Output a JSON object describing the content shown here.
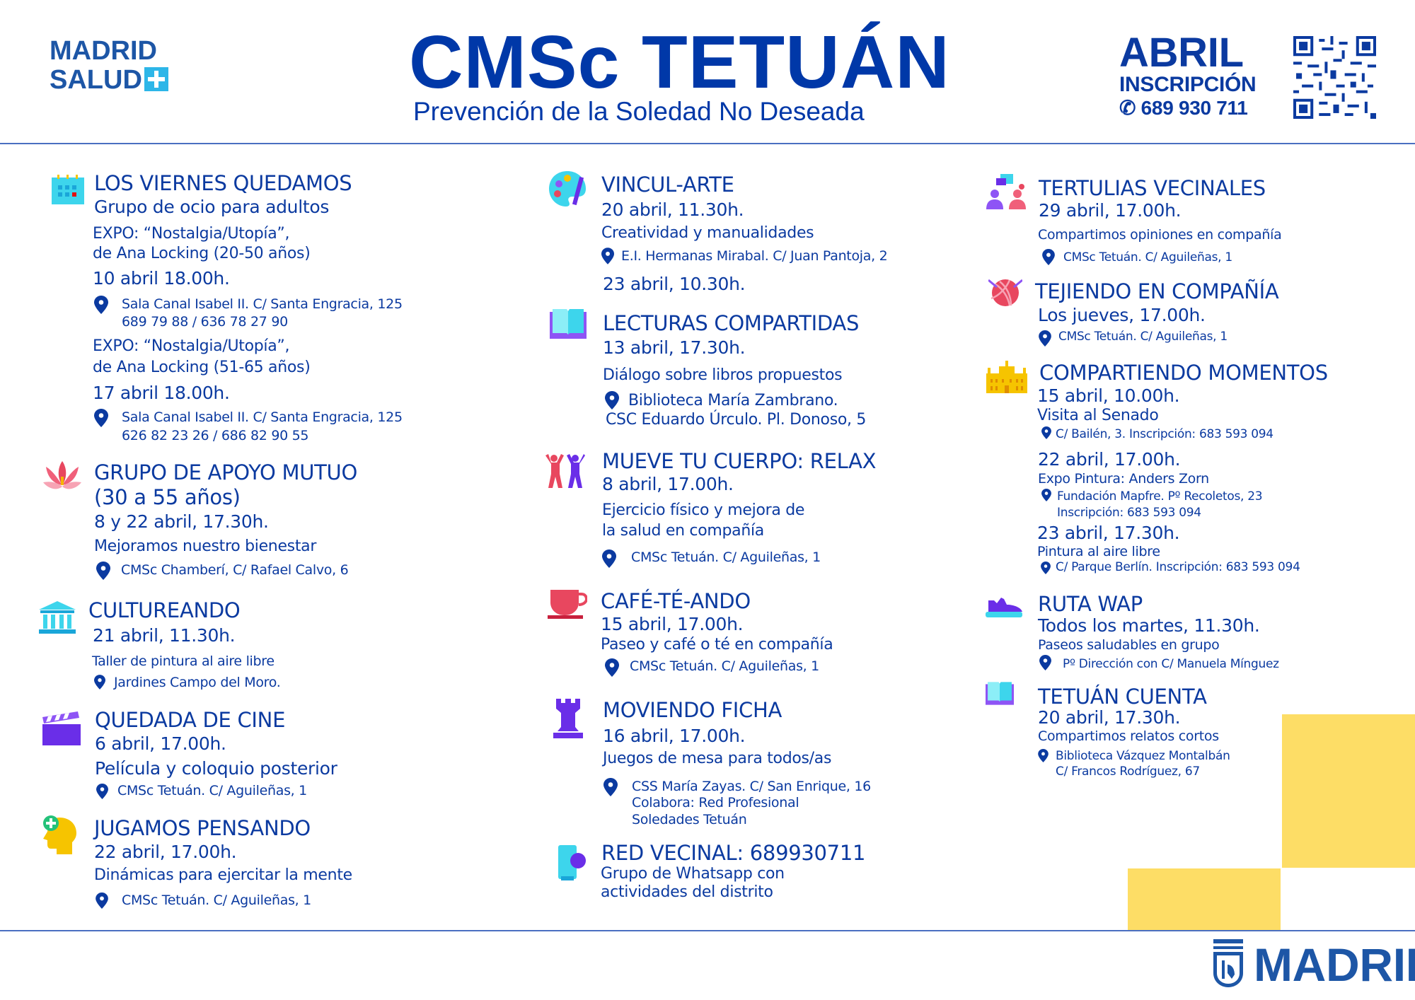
{
  "header": {
    "logo_left": {
      "line1": "MADRID",
      "line2": "SALUD"
    },
    "title": "CMSc TETUÁN",
    "subtitle": "Prevención de la Soledad No Deseada",
    "month": "ABRIL",
    "inscription_label": "INSCRIPCIÓN",
    "phone": "689 930 711"
  },
  "colors": {
    "text": "#0b3aa0",
    "title": "#0038a8",
    "accent_yellow": "#fddd66",
    "rule": "#4a6fc1"
  },
  "col1": [
    {
      "icon": "calendar-icon",
      "title": "LOS VIERNES QUEDAMOS",
      "lines": [
        "Grupo de ocio para adultos",
        "EXPO: “Nostalgia/Utopía”,",
        "de Ana Locking (20-50 años)",
        "10 abril 18.00h.",
        "Sala Canal Isabel II. C/ Santa Engracia, 125",
        "689 79 88 / 636 78 27 90",
        "EXPO: “Nostalgia/Utopía”,",
        "de Ana Locking (51-65 años)",
        "17 abril 18.00h.",
        "Sala Canal Isabel II. C/ Santa Engracia, 125",
        "626 82 23 26 / 686 82 90 55"
      ]
    },
    {
      "icon": "lotus-icon",
      "title": "GRUPO DE APOYO MUTUO",
      "lines": [
        "(30 a 55 años)",
        "8 y 22 abril, 17.30h.",
        "Mejoramos nuestro bienestar",
        "CMSc Chamberí, C/ Rafael Calvo, 6"
      ]
    },
    {
      "icon": "museum-icon",
      "title": "CULTUREANDO",
      "lines": [
        "21 abril, 11.30h.",
        "Taller de pintura al aire libre",
        "Jardines Campo del Moro."
      ]
    },
    {
      "icon": "clapperboard-icon",
      "title": "QUEDADA DE CINE",
      "lines": [
        "6 abril, 17.00h.",
        "Película y coloquio posterior",
        "CMSc Tetuán.  C/ Aguileñas, 1"
      ]
    },
    {
      "icon": "head-brain-icon",
      "title": "JUGAMOS PENSANDO",
      "lines": [
        "22 abril, 17.00h.",
        "Dinámicas para ejercitar la mente",
        "CMSc Tetuán. C/ Aguileñas, 1"
      ]
    }
  ],
  "col2": [
    {
      "icon": "palette-icon",
      "title": "VINCUL-ARTE",
      "lines": [
        "20 abril, 11.30h.",
        "Creatividad y manualidades",
        "E.I. Hermanas Mirabal. C/ Juan Pantoja, 2",
        "23 abril, 10.30h."
      ]
    },
    {
      "icon": "book-icon",
      "title": "LECTURAS COMPARTIDAS",
      "lines": [
        "13 abril, 17.30h.",
        "Diálogo sobre libros propuestos",
        "Biblioteca María Zambrano.",
        "CSC Eduardo Úrculo. Pl. Donoso, 5"
      ]
    },
    {
      "icon": "people-exercise-icon",
      "title": "MUEVE TU CUERPO: RELAX",
      "lines": [
        "8 abril, 17.00h.",
        "Ejercicio físico y mejora de",
        "la salud en compañía",
        "CMSc Tetuán.  C/ Aguileñas, 1"
      ]
    },
    {
      "icon": "cup-icon",
      "title": "CAFÉ-TÉ-ANDO",
      "lines": [
        "15 abril, 17.00h.",
        "Paseo y café o té en compañía",
        "CMSc Tetuán.  C/ Aguileñas, 1"
      ]
    },
    {
      "icon": "chess-rook-icon",
      "title": "MOVIENDO FICHA",
      "lines": [
        "16 abril, 17.00h.",
        "Juegos de mesa para todos/as",
        "CSS María Zayas. C/ San Enrique, 16",
        "Colabora: Red Profesional",
        "Soledades Tetuán"
      ]
    },
    {
      "icon": "phone-chat-icon",
      "title": "RED VECINAL: 689930711",
      "lines": [
        "Grupo de Whatsapp con",
        "actividades del distrito"
      ]
    }
  ],
  "col3": [
    {
      "icon": "conversation-icon",
      "title": "TERTULIAS VECINALES",
      "lines": [
        "29 abril, 17.00h.",
        "Compartimos opiniones en compañía",
        "CMSc Tetuán.  C/ Aguileñas, 1"
      ]
    },
    {
      "icon": "yarn-ball-icon",
      "title": "TEJIENDO EN COMPAÑÍA",
      "lines": [
        "Los jueves, 17.00h.",
        "CMSc Tetuán.  C/ Aguileñas, 1"
      ]
    },
    {
      "icon": "palace-icon",
      "title": "COMPARTIENDO MOMENTOS",
      "lines": [
        "15 abril, 10.00h.",
        "Visita al Senado",
        "C/ Bailén, 3. Inscripción: 683 593 094",
        "22 abril, 17.00h.",
        "Expo Pintura: Anders Zorn",
        "Fundación Mapfre. Pº Recoletos, 23",
        "Inscripción: 683 593 094",
        "23 abril, 17.30h.",
        "Pintura al aire libre",
        "C/ Parque Berlín. Inscripción: 683 593 094"
      ]
    },
    {
      "icon": "sneaker-icon",
      "title": "RUTA WAP",
      "lines": [
        "Todos los martes, 11.30h.",
        "Paseos saludables en grupo",
        "Pº Dirección con C/ Manuela Mínguez"
      ]
    },
    {
      "icon": "book-icon",
      "title": "TETUÁN CUENTA",
      "lines": [
        "20 abril, 17.30h.",
        "Compartimos relatos cortos",
        "Biblioteca Vázquez Montalbán",
        "C/ Francos Rodríguez, 67"
      ]
    }
  ],
  "footer": {
    "logo_text": "MADRID"
  }
}
